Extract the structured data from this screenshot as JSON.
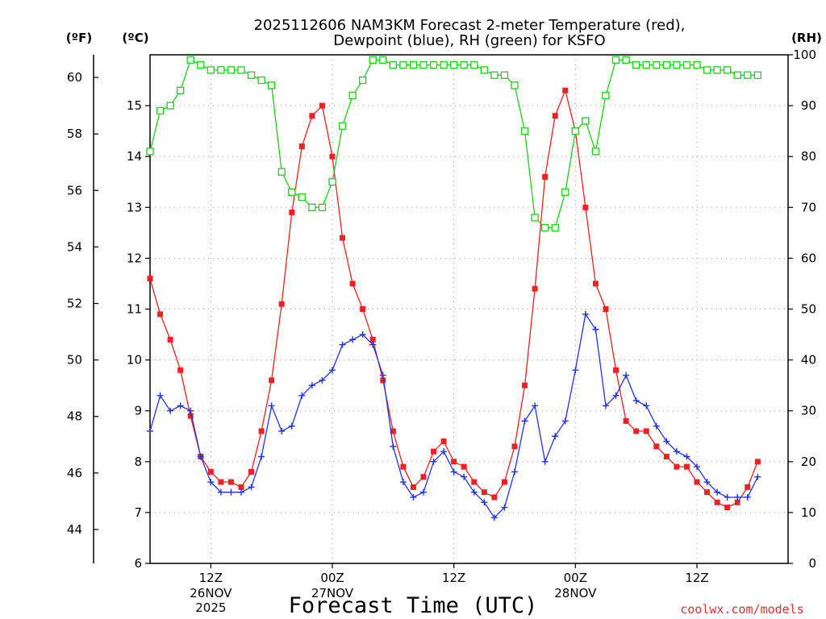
{
  "chart_data": {
    "type": "line",
    "title_line1": "2025112606 NAM3KM Forecast 2-meter Temperature (red),",
    "title_line2": "Dewpoint (blue), RH (green) for KSFO",
    "xlabel": "Forecast Time (UTC)",
    "credit": "coolwx.com/models",
    "units": {
      "fahrenheit": "(ºF)",
      "celsius": "(ºC)",
      "rh": "(RH)"
    },
    "x_hours_range": [
      0,
      63
    ],
    "celsius_range": [
      6,
      16
    ],
    "rh_range": [
      0,
      100
    ],
    "y_left_ticks_celsius": [
      "6",
      "7",
      "8",
      "9",
      "10",
      "11",
      "12",
      "13",
      "14",
      "15"
    ],
    "y_left_ticks_fahrenheit": [
      "44",
      "46",
      "48",
      "50",
      "52",
      "54",
      "56",
      "58",
      "60"
    ],
    "y_right_ticks_rh": [
      "0",
      "10",
      "20",
      "30",
      "40",
      "50",
      "60",
      "70",
      "80",
      "90",
      "100"
    ],
    "x_ticks": [
      {
        "hour": 6,
        "label": "12Z",
        "date": "26NOV",
        "year": "2025"
      },
      {
        "hour": 18,
        "label": "00Z",
        "date": "27NOV",
        "year": ""
      },
      {
        "hour": 30,
        "label": "12Z",
        "date": "",
        "year": ""
      },
      {
        "hour": 42,
        "label": "00Z",
        "date": "28NOV",
        "year": ""
      },
      {
        "hour": 54,
        "label": "12Z",
        "date": "",
        "year": ""
      }
    ],
    "series": [
      {
        "name": "Temperature",
        "color": "#ee2222",
        "marker": "filled-square",
        "axis": "celsius",
        "values": [
          11.6,
          10.9,
          10.4,
          9.8,
          8.9,
          8.1,
          7.8,
          7.6,
          7.6,
          7.5,
          7.8,
          8.6,
          9.6,
          11.1,
          12.9,
          14.2,
          14.8,
          15.0,
          14.0,
          12.4,
          11.5,
          11.0,
          10.4,
          9.6,
          8.6,
          7.9,
          7.5,
          7.7,
          8.2,
          8.4,
          8.0,
          7.9,
          7.6,
          7.4,
          7.3,
          7.6,
          8.3,
          9.5,
          11.4,
          13.6,
          14.8,
          15.3,
          14.5,
          13.0,
          11.5,
          11.0,
          9.8,
          8.8,
          8.6,
          8.6,
          8.3,
          8.1,
          7.9,
          7.9,
          7.6,
          7.4,
          7.2,
          7.1,
          7.2,
          7.5,
          8.0
        ]
      },
      {
        "name": "Dewpoint",
        "color": "#2233ee",
        "marker": "plus",
        "axis": "celsius",
        "values": [
          8.6,
          9.3,
          9.0,
          9.1,
          9.0,
          8.1,
          7.6,
          7.4,
          7.4,
          7.4,
          7.5,
          8.1,
          9.1,
          8.6,
          8.7,
          9.3,
          9.5,
          9.6,
          9.8,
          10.3,
          10.4,
          10.5,
          10.3,
          9.7,
          8.3,
          7.6,
          7.3,
          7.4,
          8.0,
          8.2,
          7.8,
          7.7,
          7.4,
          7.2,
          6.9,
          7.1,
          7.8,
          8.8,
          9.1,
          8.0,
          8.5,
          8.8,
          9.8,
          10.9,
          10.6,
          9.1,
          9.3,
          9.7,
          9.2,
          9.1,
          8.7,
          8.4,
          8.2,
          8.1,
          7.9,
          7.6,
          7.4,
          7.3,
          7.3,
          7.3,
          7.7
        ]
      },
      {
        "name": "RH",
        "color": "#22cc22",
        "marker": "open-square",
        "axis": "rh",
        "values": [
          81,
          89,
          90,
          93,
          99,
          98,
          97,
          97,
          97,
          97,
          96,
          95,
          94,
          77,
          73,
          72,
          70,
          70,
          75,
          86,
          92,
          95,
          99,
          99,
          98,
          98,
          98,
          98,
          98,
          98,
          98,
          98,
          98,
          97,
          96,
          96,
          94,
          85,
          68,
          66,
          66,
          73,
          85,
          87,
          81,
          92,
          99,
          99,
          98,
          98,
          98,
          98,
          98,
          98,
          98,
          97,
          97,
          97,
          96,
          96,
          96
        ]
      }
    ]
  }
}
